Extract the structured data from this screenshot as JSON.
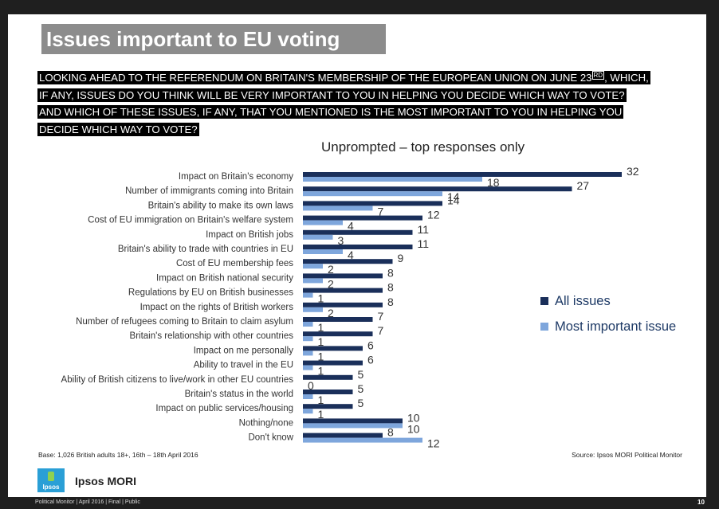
{
  "title": "Issues important to EU voting",
  "question_lines": [
    "LOOKING AHEAD TO THE REFERENDUM ON BRITAIN'S MEMBERSHIP OF THE EUROPEAN UNION ON JUNE 23",
    "IF ANY, ISSUES DO YOU THINK WILL BE VERY IMPORTANT TO YOU IN HELPING YOU DECIDE WHICH WAY TO VOTE?",
    "AND WHICH OF THESE ISSUES, IF ANY, THAT YOU MENTIONED IS THE MOST IMPORTANT TO YOU IN HELPING YOU",
    "DECIDE WHICH WAY TO VOTE?"
  ],
  "question_sup": "RD",
  "question_line1_tail": ", WHICH,",
  "subtitle": "Unprompted – top responses only",
  "base": "Base: 1,026 British adults 18+, 16th – 18th April 2016",
  "source": "Source: Ipsos MORI Political Monitor",
  "brand": "Ipsos MORI",
  "logo_text": "Ipsos",
  "footer": "Political Monitor | April 2016 | Final | Public",
  "page_number": "10",
  "colors": {
    "all_issues": "#1a2f5a",
    "most_important": "#7ea6dc"
  },
  "chart_data": {
    "type": "bar",
    "orientation": "horizontal",
    "categories": [
      "Impact on Britain's economy",
      "Number of immigrants coming into Britain",
      "Britain's ability to make its own laws",
      "Cost of EU immigration on Britain's welfare system",
      "Impact on British jobs",
      "Britain's ability to trade with countries in EU",
      "Cost of EU membership fees",
      "Impact on British national security",
      "Regulations by EU on British businesses",
      "Impact on the rights of British workers",
      "Number of refugees coming to Britain to claim asylum",
      "Britain's relationship with other countries",
      "Impact on me personally",
      "Ability to travel in the EU",
      "Ability of British citizens to live/work in other EU countries",
      "Britain's status in the world",
      "Impact on public services/housing",
      "Nothing/none",
      "Don't know"
    ],
    "series": [
      {
        "name": "All issues",
        "values": [
          32,
          27,
          14,
          12,
          11,
          11,
          9,
          8,
          8,
          8,
          7,
          7,
          6,
          6,
          5,
          5,
          5,
          10,
          8
        ]
      },
      {
        "name": "Most important issue",
        "values": [
          18,
          14,
          7,
          4,
          3,
          4,
          2,
          2,
          1,
          2,
          1,
          1,
          1,
          1,
          0,
          1,
          1,
          10,
          12
        ]
      }
    ],
    "legend": "right"
  }
}
